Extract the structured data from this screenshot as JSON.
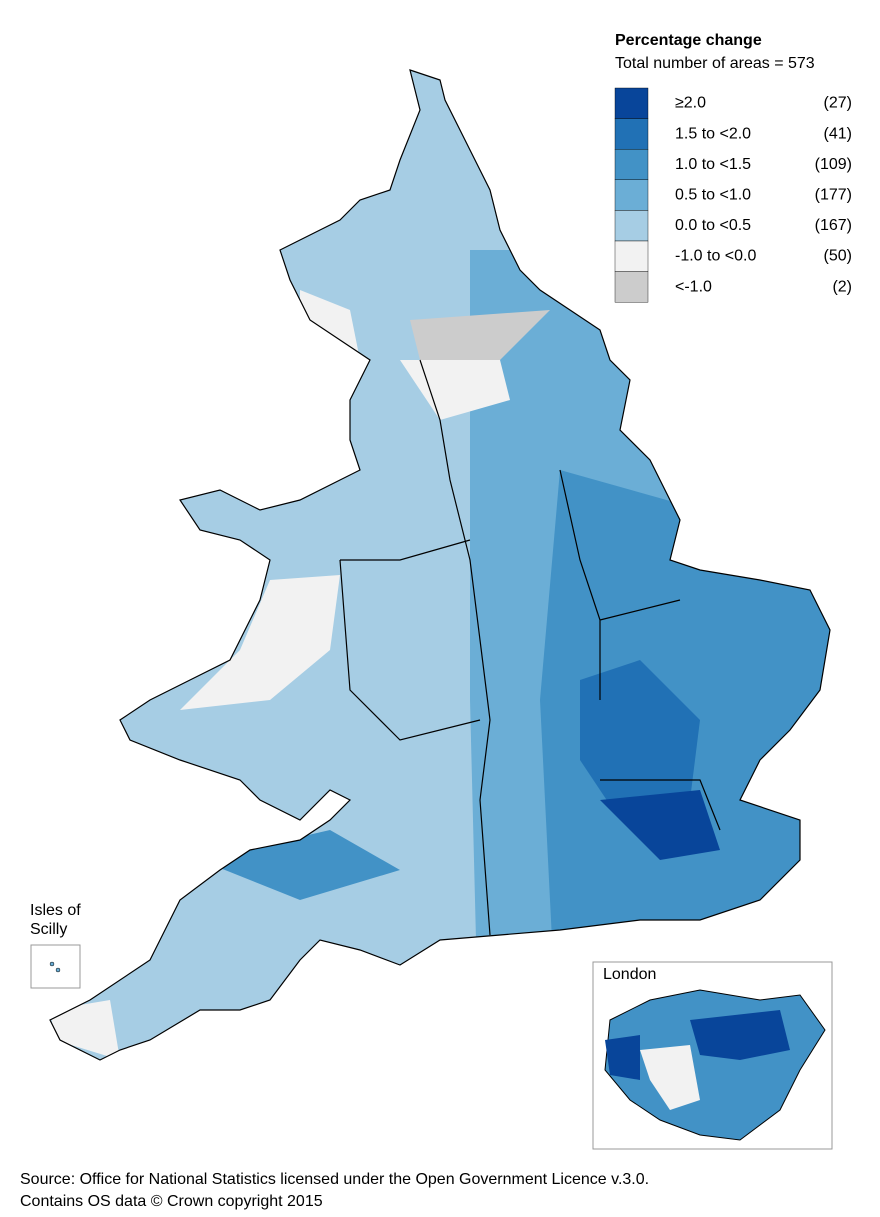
{
  "legend": {
    "title": "Percentage change",
    "subtitle": "Total number of areas = 573",
    "items": [
      {
        "label": "≥2.0",
        "count": "(27)",
        "color": "#08459a"
      },
      {
        "label": "1.5 to <2.0",
        "count": "(41)",
        "color": "#2171b5"
      },
      {
        "label": "1.0 to <1.5",
        "count": "(109)",
        "color": "#4292c6"
      },
      {
        "label": "0.5 to <1.0",
        "count": "(177)",
        "color": "#6baed6"
      },
      {
        "label": "0.0 to <0.5",
        "count": "(167)",
        "color": "#a6cde4"
      },
      {
        "label": "-1.0 to <0.0",
        "count": "(50)",
        "color": "#f2f2f2"
      },
      {
        "label": "<-1.0",
        "count": "(2)",
        "color": "#cccccc"
      }
    ]
  },
  "insets": {
    "scilly": [
      "Isles of",
      "Scilly"
    ],
    "london": "London"
  },
  "source": [
    "Source: Office for National Statistics licensed under the Open Government Licence v.3.0.",
    "Contains OS data © Crown copyright 2015"
  ]
}
